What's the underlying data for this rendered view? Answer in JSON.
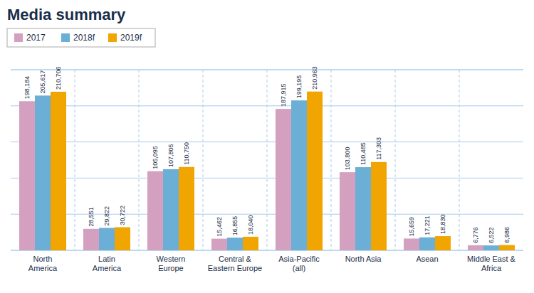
{
  "chart_data": {
    "type": "bar",
    "title": "Media summary",
    "categories": [
      "North\nAmerica",
      "Latin\nAmerica",
      "Western\nEurope",
      "Central &\nEastern Europe",
      "Asia-Pacific\n(all)",
      "North Asia",
      "Asean",
      "Middle East &\nAfrica"
    ],
    "series": [
      {
        "name": "2017",
        "color": "#d4a0c0",
        "values": [
          198184,
          28551,
          105095,
          15462,
          187915,
          103800,
          15659,
          6776
        ],
        "value_labels": [
          "198,184",
          "28,551",
          "105,095",
          "15,462",
          "187,915",
          "103,800",
          "15,659",
          "6,776"
        ]
      },
      {
        "name": "2018f",
        "color": "#6baed6",
        "values": [
          205617,
          29822,
          107805,
          16855,
          199195,
          110485,
          17221,
          6522
        ],
        "value_labels": [
          "205,617",
          "29,822",
          "107,805",
          "16,855",
          "199,195",
          "110,485",
          "17,221",
          "6,522"
        ]
      },
      {
        "name": "2019f",
        "color": "#f0a500",
        "values": [
          210706,
          30722,
          110750,
          18040,
          210963,
          117303,
          18830,
          6986
        ],
        "value_labels": [
          "210,706",
          "30,722",
          "110,750",
          "18,040",
          "210,963",
          "117,303",
          "18,830",
          "6,986"
        ]
      }
    ],
    "ylim": [
      0,
      240000
    ],
    "yticks": [
      0,
      48000,
      96000,
      144000,
      192000,
      240000
    ],
    "grid": true,
    "legend": "top-left",
    "data_labels": true,
    "tick_labels": "x"
  }
}
